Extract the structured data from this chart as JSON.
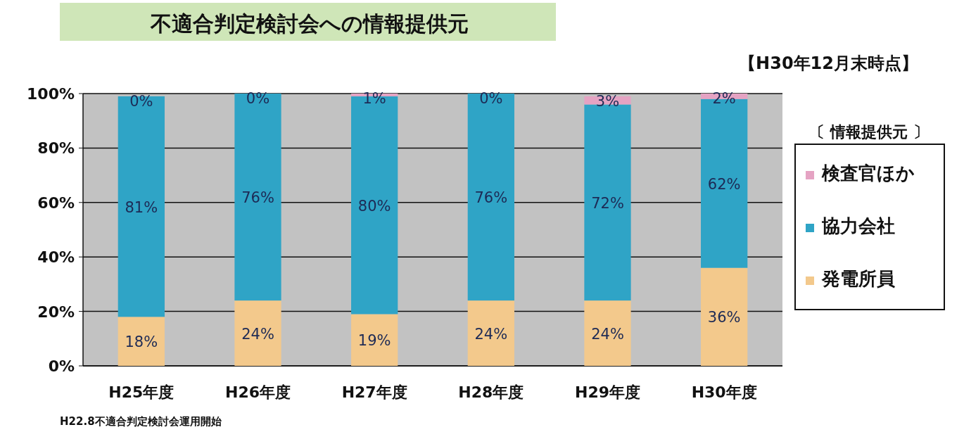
{
  "chart_data": {
    "type": "bar",
    "stacked": true,
    "title": "不適合判定検討会への情報提供元",
    "subtitle": "【H30年12月末時点】",
    "legend_title": "〔 情報提供元 〕",
    "annotations": [
      "H22.8不適合判定検討会運用開始"
    ],
    "categories": [
      "H25年度",
      "H26年度",
      "H27年度",
      "H28年度",
      "H29年度",
      "H30年度"
    ],
    "series": [
      {
        "name": "発電所員",
        "color": "#f3c98c",
        "values": [
          18,
          24,
          19,
          24,
          24,
          36
        ],
        "value_labels": [
          "18%",
          "24%",
          "19%",
          "24%",
          "24%",
          "36%"
        ]
      },
      {
        "name": "協力会社",
        "color": "#2fa4c6",
        "values": [
          81,
          76,
          80,
          76,
          72,
          62
        ],
        "value_labels": [
          "81%",
          "76%",
          "80%",
          "76%",
          "72%",
          "62%"
        ]
      },
      {
        "name": "検査官ほか",
        "color": "#e5a3c3",
        "values": [
          0,
          0,
          1,
          0,
          3,
          2
        ],
        "value_labels": [
          "0%",
          "0%",
          "1%",
          "0%",
          "3%",
          "2%"
        ]
      }
    ],
    "ylim": [
      0,
      100
    ],
    "yticks": [
      {
        "value": 0,
        "label": "0%"
      },
      {
        "value": 20,
        "label": "20%"
      },
      {
        "value": 40,
        "label": "40%"
      },
      {
        "value": 60,
        "label": "60%"
      },
      {
        "value": 80,
        "label": "80%"
      },
      {
        "value": 100,
        "label": "100%"
      }
    ],
    "grid": "y",
    "legend": "right"
  }
}
